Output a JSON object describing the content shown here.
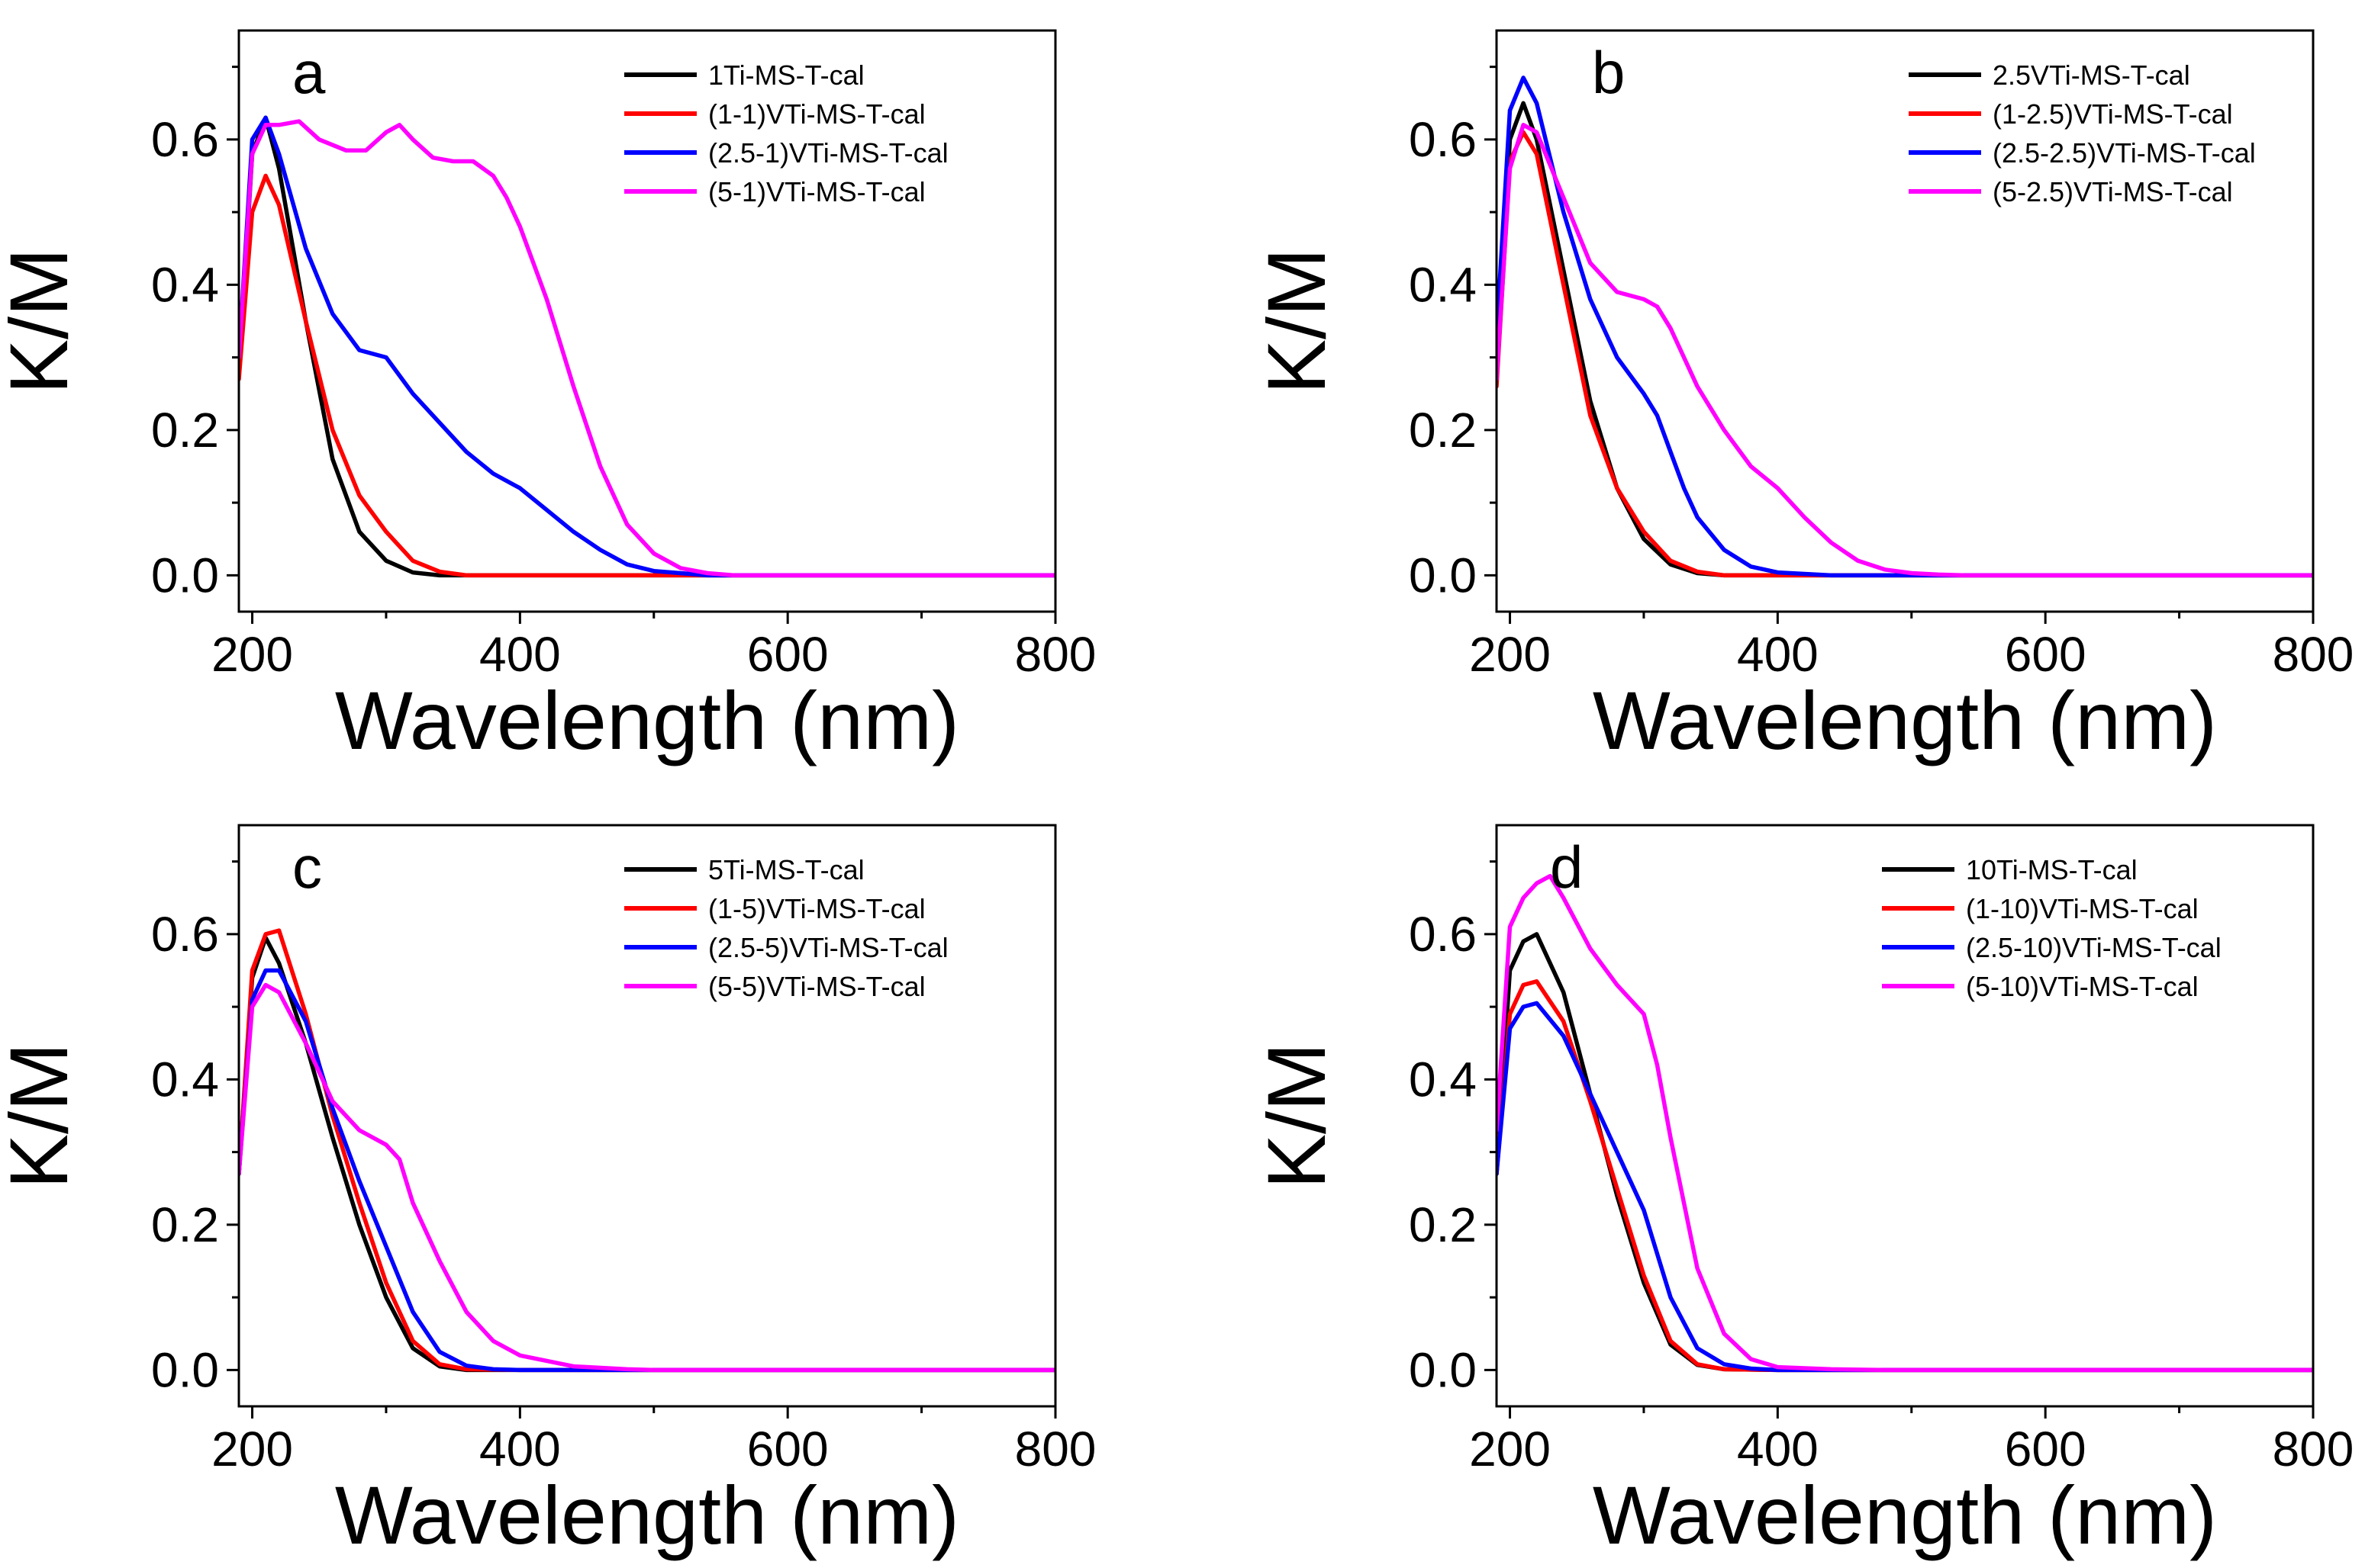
{
  "chart_data": [
    {
      "type": "line",
      "panel_label": "a",
      "xlabel": "Wavelength (nm)",
      "ylabel": "K/M",
      "xlim": [
        190,
        800
      ],
      "ylim": [
        -0.05,
        0.75
      ],
      "xticks": [
        200,
        400,
        600,
        800
      ],
      "yticks": [
        0.0,
        0.2,
        0.4,
        0.6
      ],
      "xtick_labels": [
        "200",
        "400",
        "600",
        "800"
      ],
      "ytick_labels": [
        "0.0",
        "0.2",
        "0.4",
        "0.6"
      ],
      "legend_position": "top-right",
      "series": [
        {
          "name": "1Ti-MS-T-cal",
          "color": "#000000",
          "x": [
            190,
            200,
            210,
            220,
            240,
            260,
            280,
            300,
            320,
            340,
            360,
            400,
            500,
            600,
            700,
            800
          ],
          "y": [
            0.28,
            0.58,
            0.63,
            0.56,
            0.35,
            0.16,
            0.06,
            0.02,
            0.004,
            0.0,
            0.0,
            0.0,
            0.0,
            0.0,
            0.0,
            0.0
          ]
        },
        {
          "name": "(1-1)VTi-MS-T-cal",
          "color": "#ff0000",
          "x": [
            190,
            200,
            210,
            220,
            240,
            260,
            280,
            300,
            320,
            340,
            360,
            400,
            500,
            600,
            700,
            800
          ],
          "y": [
            0.27,
            0.5,
            0.55,
            0.51,
            0.35,
            0.2,
            0.11,
            0.06,
            0.02,
            0.005,
            0.0,
            0.0,
            0.0,
            0.0,
            0.0,
            0.0
          ]
        },
        {
          "name": "(2.5-1)VTi-MS-T-cal",
          "color": "#0000ff",
          "x": [
            190,
            200,
            210,
            220,
            240,
            260,
            280,
            300,
            320,
            340,
            360,
            380,
            400,
            420,
            440,
            460,
            480,
            500,
            540,
            600,
            700,
            800
          ],
          "y": [
            0.3,
            0.6,
            0.63,
            0.58,
            0.45,
            0.36,
            0.31,
            0.3,
            0.25,
            0.21,
            0.17,
            0.14,
            0.12,
            0.09,
            0.06,
            0.035,
            0.015,
            0.006,
            0.0,
            0.0,
            0.0,
            0.0
          ]
        },
        {
          "name": "(5-1)VTi-MS-T-cal",
          "color": "#ff00ff",
          "x": [
            190,
            200,
            210,
            220,
            235,
            250,
            270,
            285,
            300,
            310,
            320,
            335,
            350,
            365,
            380,
            390,
            400,
            420,
            440,
            460,
            480,
            500,
            520,
            540,
            560,
            600,
            700,
            800
          ],
          "y": [
            0.3,
            0.58,
            0.62,
            0.62,
            0.625,
            0.6,
            0.585,
            0.585,
            0.61,
            0.62,
            0.6,
            0.575,
            0.57,
            0.57,
            0.55,
            0.52,
            0.48,
            0.38,
            0.26,
            0.15,
            0.07,
            0.03,
            0.01,
            0.003,
            0.0,
            0.0,
            0.0,
            0.0
          ]
        }
      ]
    },
    {
      "type": "line",
      "panel_label": "b",
      "xlabel": "Wavelength (nm)",
      "ylabel": "K/M",
      "xlim": [
        190,
        800
      ],
      "ylim": [
        -0.05,
        0.75
      ],
      "xticks": [
        200,
        400,
        600,
        800
      ],
      "yticks": [
        0.0,
        0.2,
        0.4,
        0.6
      ],
      "xtick_labels": [
        "200",
        "400",
        "600",
        "800"
      ],
      "ytick_labels": [
        "0.0",
        "0.2",
        "0.4",
        "0.6"
      ],
      "legend_position": "top-right",
      "series": [
        {
          "name": "2.5VTi-MS-T-cal",
          "color": "#000000",
          "x": [
            190,
            200,
            210,
            220,
            240,
            260,
            280,
            300,
            320,
            340,
            360,
            400,
            500,
            600,
            700,
            800
          ],
          "y": [
            0.27,
            0.6,
            0.65,
            0.6,
            0.42,
            0.24,
            0.12,
            0.05,
            0.015,
            0.003,
            0.0,
            0.0,
            0.0,
            0.0,
            0.0,
            0.0
          ]
        },
        {
          "name": "(1-2.5)VTi-MS-T-cal",
          "color": "#ff0000",
          "x": [
            190,
            200,
            210,
            220,
            240,
            260,
            280,
            300,
            320,
            340,
            360,
            400,
            500,
            600,
            700,
            800
          ],
          "y": [
            0.26,
            0.57,
            0.61,
            0.58,
            0.4,
            0.22,
            0.12,
            0.06,
            0.02,
            0.005,
            0.0,
            0.0,
            0.0,
            0.0,
            0.0,
            0.0
          ]
        },
        {
          "name": "(2.5-2.5)VTi-MS-T-cal",
          "color": "#0000ff",
          "x": [
            190,
            200,
            210,
            220,
            240,
            260,
            280,
            300,
            310,
            320,
            330,
            340,
            360,
            380,
            400,
            440,
            500,
            600,
            700,
            800
          ],
          "y": [
            0.33,
            0.64,
            0.685,
            0.65,
            0.5,
            0.38,
            0.3,
            0.25,
            0.22,
            0.17,
            0.12,
            0.08,
            0.035,
            0.012,
            0.004,
            0.0,
            0.0,
            0.0,
            0.0,
            0.0
          ]
        },
        {
          "name": "(5-2.5)VTi-MS-T-cal",
          "color": "#ff00ff",
          "x": [
            190,
            200,
            210,
            220,
            240,
            260,
            280,
            300,
            310,
            320,
            340,
            360,
            380,
            400,
            420,
            440,
            460,
            480,
            500,
            520,
            540,
            600,
            700,
            800
          ],
          "y": [
            0.27,
            0.56,
            0.62,
            0.61,
            0.52,
            0.43,
            0.39,
            0.38,
            0.37,
            0.34,
            0.26,
            0.2,
            0.15,
            0.12,
            0.08,
            0.045,
            0.02,
            0.008,
            0.003,
            0.001,
            0.0,
            0.0,
            0.0,
            0.0
          ]
        }
      ]
    },
    {
      "type": "line",
      "panel_label": "c",
      "xlabel": "Wavelength (nm)",
      "ylabel": "K/M",
      "xlim": [
        190,
        800
      ],
      "ylim": [
        -0.05,
        0.75
      ],
      "xticks": [
        200,
        400,
        600,
        800
      ],
      "yticks": [
        0.0,
        0.2,
        0.4,
        0.6
      ],
      "xtick_labels": [
        "200",
        "400",
        "600",
        "800"
      ],
      "ytick_labels": [
        "0.0",
        "0.2",
        "0.4",
        "0.6"
      ],
      "legend_position": "top-right",
      "series": [
        {
          "name": "5Ti-MS-T-cal",
          "color": "#000000",
          "x": [
            190,
            200,
            210,
            220,
            240,
            260,
            280,
            300,
            320,
            340,
            360,
            400,
            500,
            600,
            700,
            800
          ],
          "y": [
            0.27,
            0.54,
            0.595,
            0.56,
            0.45,
            0.32,
            0.2,
            0.1,
            0.03,
            0.005,
            0.0,
            0.0,
            0.0,
            0.0,
            0.0,
            0.0
          ]
        },
        {
          "name": "(1-5)VTi-MS-T-cal",
          "color": "#ff0000",
          "x": [
            190,
            200,
            210,
            220,
            240,
            260,
            280,
            300,
            320,
            340,
            360,
            400,
            500,
            600,
            700,
            800
          ],
          "y": [
            0.27,
            0.55,
            0.6,
            0.605,
            0.49,
            0.35,
            0.23,
            0.12,
            0.04,
            0.008,
            0.001,
            0.0,
            0.0,
            0.0,
            0.0,
            0.0
          ]
        },
        {
          "name": "(2.5-5)VTi-MS-T-cal",
          "color": "#0000ff",
          "x": [
            190,
            200,
            210,
            220,
            240,
            260,
            280,
            300,
            320,
            340,
            360,
            380,
            400,
            500,
            600,
            700,
            800
          ],
          "y": [
            0.27,
            0.51,
            0.55,
            0.55,
            0.48,
            0.36,
            0.26,
            0.17,
            0.08,
            0.025,
            0.006,
            0.001,
            0.0,
            0.0,
            0.0,
            0.0,
            0.0
          ]
        },
        {
          "name": "(5-5)VTi-MS-T-cal",
          "color": "#ff00ff",
          "x": [
            190,
            200,
            210,
            220,
            240,
            260,
            280,
            300,
            310,
            320,
            340,
            360,
            380,
            400,
            440,
            480,
            500,
            600,
            700,
            800
          ],
          "y": [
            0.27,
            0.5,
            0.53,
            0.52,
            0.45,
            0.37,
            0.33,
            0.31,
            0.29,
            0.23,
            0.15,
            0.08,
            0.04,
            0.02,
            0.005,
            0.001,
            0.0,
            0.0,
            0.0,
            0.0
          ]
        }
      ]
    },
    {
      "type": "line",
      "panel_label": "d",
      "xlabel": "Wavelength (nm)",
      "ylabel": "K/M",
      "xlim": [
        190,
        800
      ],
      "ylim": [
        -0.05,
        0.75
      ],
      "xticks": [
        200,
        400,
        600,
        800
      ],
      "yticks": [
        0.0,
        0.2,
        0.4,
        0.6
      ],
      "xtick_labels": [
        "200",
        "400",
        "600",
        "800"
      ],
      "ytick_labels": [
        "0.0",
        "0.2",
        "0.4",
        "0.6"
      ],
      "legend_position": "top-right",
      "series": [
        {
          "name": "10Ti-MS-T-cal",
          "color": "#000000",
          "x": [
            190,
            200,
            210,
            220,
            240,
            260,
            280,
            300,
            320,
            340,
            360,
            400,
            500,
            600,
            700,
            800
          ],
          "y": [
            0.27,
            0.55,
            0.59,
            0.6,
            0.52,
            0.38,
            0.24,
            0.12,
            0.035,
            0.007,
            0.001,
            0.0,
            0.0,
            0.0,
            0.0,
            0.0
          ]
        },
        {
          "name": "(1-10)VTi-MS-T-cal",
          "color": "#ff0000",
          "x": [
            190,
            200,
            210,
            220,
            240,
            260,
            280,
            300,
            320,
            340,
            360,
            400,
            500,
            600,
            700,
            800
          ],
          "y": [
            0.27,
            0.49,
            0.53,
            0.535,
            0.48,
            0.37,
            0.25,
            0.13,
            0.04,
            0.008,
            0.001,
            0.0,
            0.0,
            0.0,
            0.0,
            0.0
          ]
        },
        {
          "name": "(2.5-10)VTi-MS-T-cal",
          "color": "#0000ff",
          "x": [
            190,
            200,
            210,
            220,
            240,
            260,
            280,
            300,
            320,
            340,
            360,
            380,
            400,
            500,
            600,
            700,
            800
          ],
          "y": [
            0.27,
            0.47,
            0.5,
            0.505,
            0.46,
            0.38,
            0.3,
            0.22,
            0.1,
            0.03,
            0.008,
            0.002,
            0.0,
            0.0,
            0.0,
            0.0,
            0.0
          ]
        },
        {
          "name": "(5-10)VTi-MS-T-cal",
          "color": "#ff00ff",
          "x": [
            190,
            200,
            210,
            220,
            230,
            240,
            260,
            280,
            300,
            310,
            320,
            340,
            360,
            380,
            400,
            440,
            480,
            500,
            600,
            700,
            800
          ],
          "y": [
            0.33,
            0.61,
            0.65,
            0.67,
            0.68,
            0.65,
            0.58,
            0.53,
            0.49,
            0.42,
            0.32,
            0.14,
            0.05,
            0.015,
            0.004,
            0.001,
            0.0,
            0.0,
            0.0,
            0.0,
            0.0
          ]
        }
      ]
    }
  ]
}
